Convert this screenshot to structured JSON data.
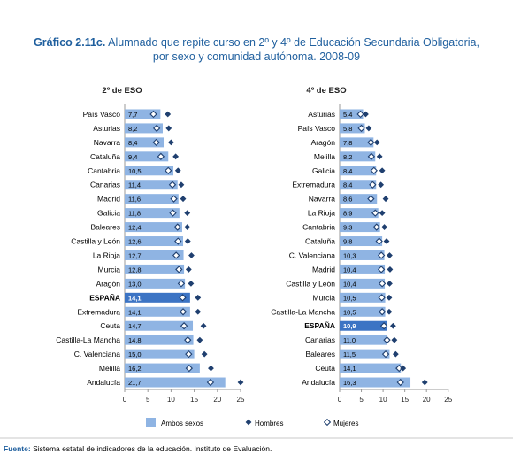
{
  "title": {
    "label": "Gráfico 2.11c.",
    "line1": "Alumnado que repite curso en 2º y 4º de Educación Secundaria Obligatoria,",
    "line2": "por sexo y comunidad autónoma. 2008-09"
  },
  "legend": {
    "total": "Ambos sexos",
    "men": "Hombres",
    "women": "Mujeres"
  },
  "footer": {
    "label": "Fuente:",
    "text": " Sistema estatal de indicadores de la educación. Instituto de Evaluación."
  },
  "colors": {
    "bar": "#8fb4e3",
    "bar_highlight": "#3c74c4",
    "men": "#1f3f6f",
    "women_stroke": "#1f3f6f",
    "title": "#1f5f9e"
  },
  "chart_data": [
    {
      "type": "bar",
      "title": "2º de ESO",
      "xlim": [
        0,
        25
      ],
      "xticks": [
        0,
        5,
        10,
        15,
        20,
        25
      ],
      "highlight": "ESPAÑA",
      "categories": [
        "País Vasco",
        "Asturias",
        "Navarra",
        "Cataluña",
        "Cantabria",
        "Canarias",
        "Madrid",
        "Galicia",
        "Baleares",
        "Castilla y León",
        "La Rioja",
        "Murcia",
        "Aragón",
        "ESPAÑA",
        "Extremadura",
        "Ceuta",
        "Castilla-La Mancha",
        "C. Valenciana",
        "Melilla",
        "Andalucía"
      ],
      "value_labels": [
        "7,7",
        "8,2",
        "8,4",
        "9,4",
        "10,5",
        "11,4",
        "11,6",
        "11,8",
        "12,4",
        "12,6",
        "12,7",
        "12,8",
        "13,0",
        "14,1",
        "14,1",
        "14,7",
        "14,8",
        "15,0",
        "16,2",
        "21,7"
      ],
      "series": [
        {
          "name": "Ambos sexos",
          "values": [
            7.7,
            8.2,
            8.4,
            9.4,
            10.5,
            11.4,
            11.6,
            11.8,
            12.4,
            12.6,
            12.7,
            12.8,
            13.0,
            14.1,
            14.1,
            14.7,
            14.8,
            15.0,
            16.2,
            21.7
          ]
        },
        {
          "name": "Hombres",
          "values": [
            9.3,
            9.5,
            10.0,
            11.0,
            11.5,
            12.2,
            12.6,
            13.5,
            13.5,
            13.6,
            14.4,
            13.8,
            14.3,
            15.8,
            15.8,
            17.0,
            16.2,
            17.2,
            18.6,
            25.0
          ]
        },
        {
          "name": "Mujeres",
          "values": [
            6.2,
            6.9,
            6.8,
            7.8,
            9.4,
            10.3,
            10.6,
            10.4,
            11.4,
            11.5,
            11.1,
            11.7,
            12.2,
            12.5,
            12.6,
            12.8,
            13.6,
            13.8,
            13.9,
            18.5
          ]
        }
      ]
    },
    {
      "type": "bar",
      "title": "4º de ESO",
      "xlim": [
        0,
        25
      ],
      "xticks": [
        0,
        5,
        10,
        15,
        20,
        25
      ],
      "highlight": "ESPAÑA",
      "categories": [
        "Asturias",
        "País Vasco",
        "Aragón",
        "Melilla",
        "Galicia",
        "Extremadura",
        "Navarra",
        "La Rioja",
        "Cantabria",
        "Cataluña",
        "C. Valenciana",
        "Madrid",
        "Castilla y León",
        "Murcia",
        "Castilla-La Mancha",
        "ESPAÑA",
        "Canarias",
        "Baleares",
        "Ceuta",
        "Andalucía"
      ],
      "value_labels": [
        "5,4",
        "5,8",
        "7,8",
        "8,2",
        "8,4",
        "8,4",
        "8,6",
        "8,9",
        "9,3",
        "9,8",
        "10,3",
        "10,4",
        "10,4",
        "10,5",
        "10,5",
        "10,9",
        "11,0",
        "11,5",
        "14,1",
        "16,3"
      ],
      "series": [
        {
          "name": "Ambos sexos",
          "values": [
            5.4,
            5.8,
            7.8,
            8.2,
            8.4,
            8.4,
            8.6,
            8.9,
            9.3,
            9.8,
            10.3,
            10.4,
            10.4,
            10.5,
            10.5,
            10.9,
            11.0,
            11.5,
            14.1,
            16.3
          ]
        },
        {
          "name": "Hombres",
          "values": [
            6.0,
            6.7,
            8.6,
            9.2,
            9.8,
            9.5,
            10.6,
            9.8,
            10.3,
            10.8,
            11.5,
            11.6,
            11.5,
            11.4,
            11.4,
            12.3,
            12.6,
            12.9,
            14.6,
            19.6
          ]
        },
        {
          "name": "Mujeres",
          "values": [
            4.8,
            5.0,
            7.2,
            7.3,
            7.9,
            7.6,
            7.2,
            8.2,
            8.5,
            9.1,
            9.6,
            9.6,
            9.8,
            9.7,
            9.8,
            10.2,
            10.9,
            10.6,
            13.7,
            14.0
          ]
        }
      ]
    }
  ]
}
